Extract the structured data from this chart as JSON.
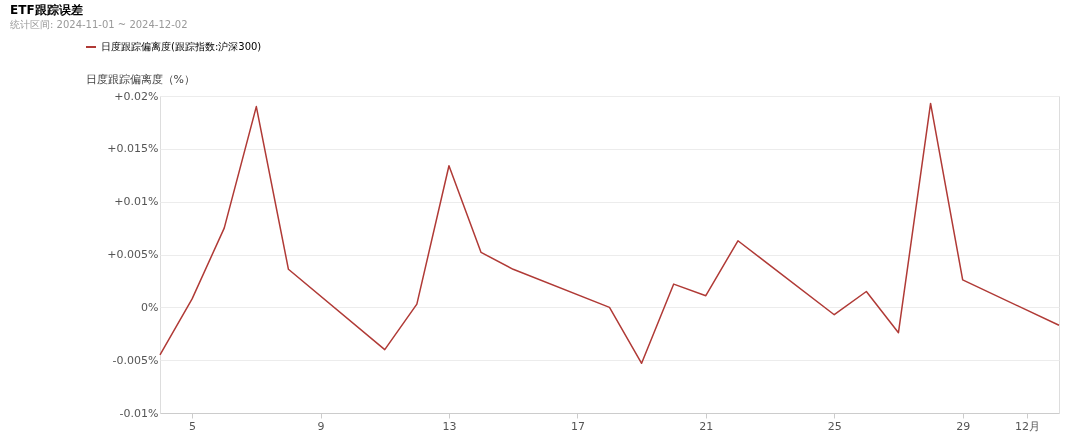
{
  "chart_data": {
    "type": "line",
    "title": "ETF跟踪误差",
    "subtitle": "统计区间: 2024-11-01 ~ 2024-12-02",
    "ylabel": "日度跟踪偏离度（%）",
    "x": [
      "2024-11-04",
      "2024-11-05",
      "2024-11-06",
      "2024-11-07",
      "2024-11-08",
      "2024-11-11",
      "2024-11-12",
      "2024-11-13",
      "2024-11-14",
      "2024-11-15",
      "2024-11-18",
      "2024-11-19",
      "2024-11-20",
      "2024-11-21",
      "2024-11-22",
      "2024-11-25",
      "2024-11-26",
      "2024-11-27",
      "2024-11-28",
      "2024-11-29",
      "2024-12-02"
    ],
    "series": [
      {
        "name": "日度跟踪偏离度(跟踪指数:沪深300)",
        "color": "#b03a36",
        "values": [
          -0.0045,
          0.0008,
          0.0075,
          0.019,
          0.0036,
          -0.004,
          0.0003,
          0.0134,
          0.0052,
          0.0036,
          0.0,
          -0.0053,
          0.0022,
          0.0011,
          0.0063,
          -0.0007,
          0.0015,
          -0.0024,
          0.0193,
          0.0026,
          -0.0017
        ]
      }
    ],
    "xlim": [
      "2024-11-04",
      "2024-12-02"
    ],
    "xticks": [
      {
        "value": "2024-11-05",
        "label": "5"
      },
      {
        "value": "2024-11-09",
        "label": "9"
      },
      {
        "value": "2024-11-13",
        "label": "13"
      },
      {
        "value": "2024-11-17",
        "label": "17"
      },
      {
        "value": "2024-11-21",
        "label": "21"
      },
      {
        "value": "2024-11-25",
        "label": "25"
      },
      {
        "value": "2024-11-29",
        "label": "29"
      },
      {
        "value": "2024-12-01",
        "label": "12月"
      }
    ],
    "ylim": [
      -0.01,
      0.02
    ],
    "yticks": [
      {
        "value": -0.01,
        "label": "-0.01%"
      },
      {
        "value": -0.005,
        "label": "-0.005%"
      },
      {
        "value": 0,
        "label": "0%"
      },
      {
        "value": 0.005,
        "label": "+0.005%"
      },
      {
        "value": 0.01,
        "label": "+0.01%"
      },
      {
        "value": 0.015,
        "label": "+0.015%"
      },
      {
        "value": 0.02,
        "label": "+0.02%"
      }
    ],
    "grid": "y",
    "legend": "top left",
    "marker": "none",
    "line_style": "solid"
  }
}
